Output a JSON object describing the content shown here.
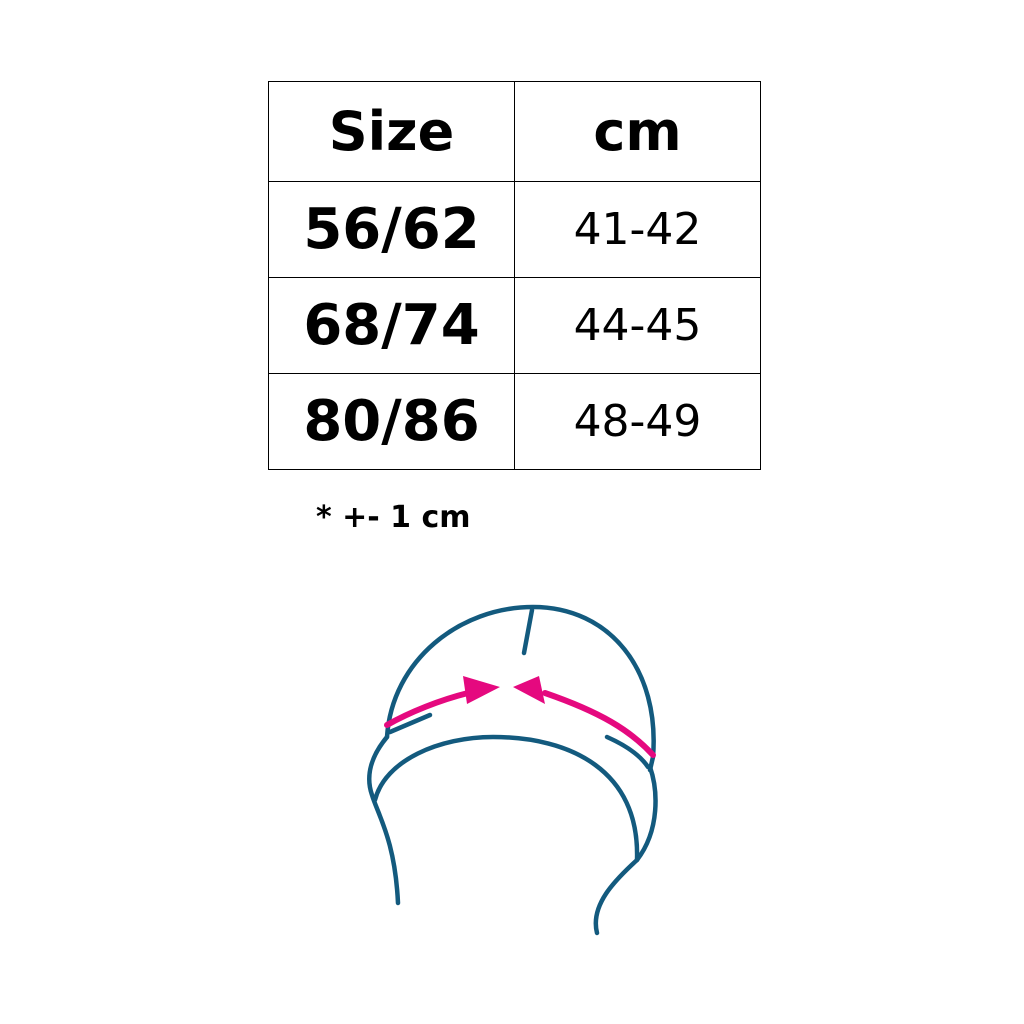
{
  "table": {
    "headers": [
      "Size",
      "cm"
    ],
    "rows": [
      {
        "size": "56/62",
        "cm": "41-42"
      },
      {
        "size": "68/74",
        "cm": "44-45"
      },
      {
        "size": "80/86",
        "cm": "48-49"
      }
    ]
  },
  "note": "* +- 1 cm",
  "illustration": {
    "icon": "hat-measurement-icon",
    "line_color": "#135a7e",
    "arrow_color": "#e5097f"
  }
}
